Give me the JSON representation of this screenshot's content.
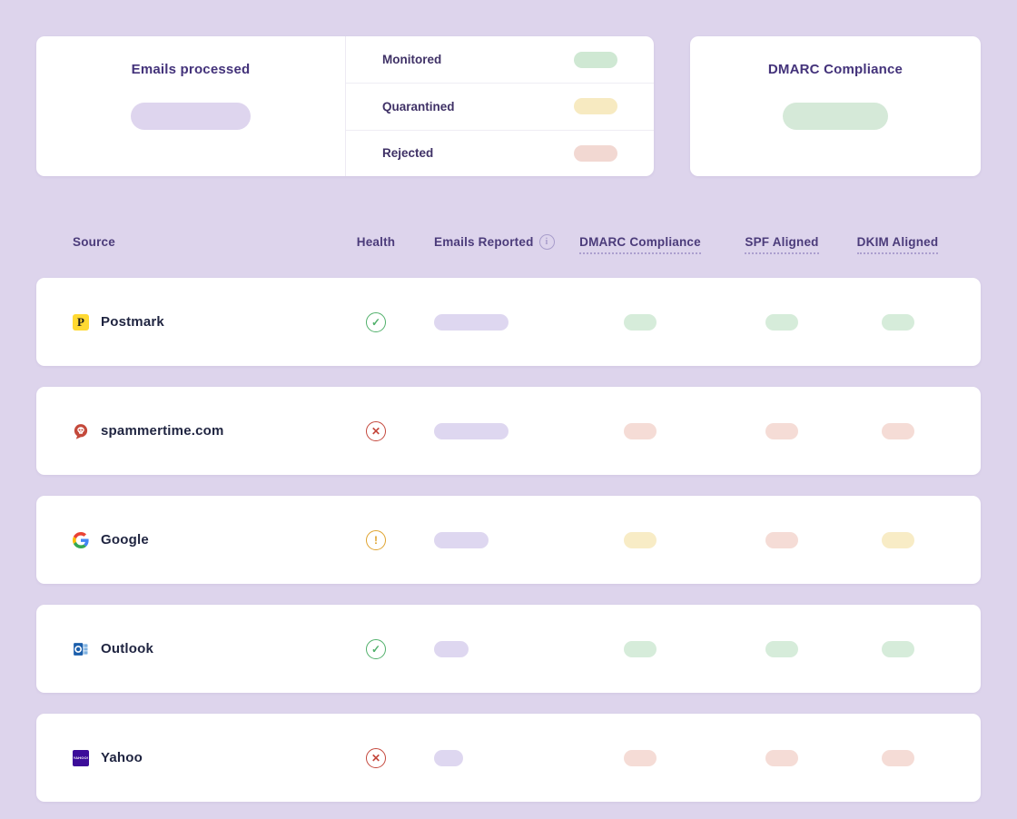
{
  "colors": {
    "pass": "#d6ecda",
    "fail": "#f5dcd6",
    "warn": "#f8ecc6",
    "neutral": "#ded7f0",
    "health_pass": "#50b06a",
    "health_fail": "#c4473c",
    "health_warn": "#dfa32e",
    "emails_processed_pill": "#ded5ee",
    "dmarc_compliance_pill": "#d5e9d8"
  },
  "icons": {
    "health": {
      "pass": "✓",
      "fail": "✕",
      "warn": "!"
    },
    "info": "i"
  },
  "summary": {
    "emails_processed_title": "Emails processed",
    "dmarc_title": "DMARC Compliance",
    "legend": [
      {
        "label": "Monitored",
        "color": "#cfe8d3"
      },
      {
        "label": "Quarantined",
        "color": "#f7eac1"
      },
      {
        "label": "Rejected",
        "color": "#f2d8d2"
      }
    ]
  },
  "table": {
    "headers": {
      "source": "Source",
      "health": "Health",
      "emails": "Emails Reported",
      "dmarc": "DMARC Compliance",
      "spf": "SPF Aligned",
      "dkim": "DKIM Aligned"
    },
    "rows": [
      {
        "source": "Postmark",
        "brand": "postmark",
        "health": "pass",
        "emails_pill_width": 82,
        "dmarc": "pass",
        "spf": "pass",
        "dkim": "pass"
      },
      {
        "source": "spammertime.com",
        "brand": "spammertime",
        "health": "fail",
        "emails_pill_width": 82,
        "dmarc": "fail",
        "spf": "fail",
        "dkim": "fail"
      },
      {
        "source": "Google",
        "brand": "google",
        "health": "warn",
        "emails_pill_width": 60,
        "dmarc": "warn",
        "spf": "fail",
        "dkim": "warn"
      },
      {
        "source": "Outlook",
        "brand": "outlook",
        "health": "pass",
        "emails_pill_width": 38,
        "dmarc": "pass",
        "spf": "pass",
        "dkim": "pass"
      },
      {
        "source": "Yahoo",
        "brand": "yahoo",
        "health": "fail",
        "emails_pill_width": 32,
        "dmarc": "fail",
        "spf": "fail",
        "dkim": "fail"
      }
    ],
    "yahoo_badge_text": "YAHOO!",
    "postmark_badge_text": "P"
  }
}
